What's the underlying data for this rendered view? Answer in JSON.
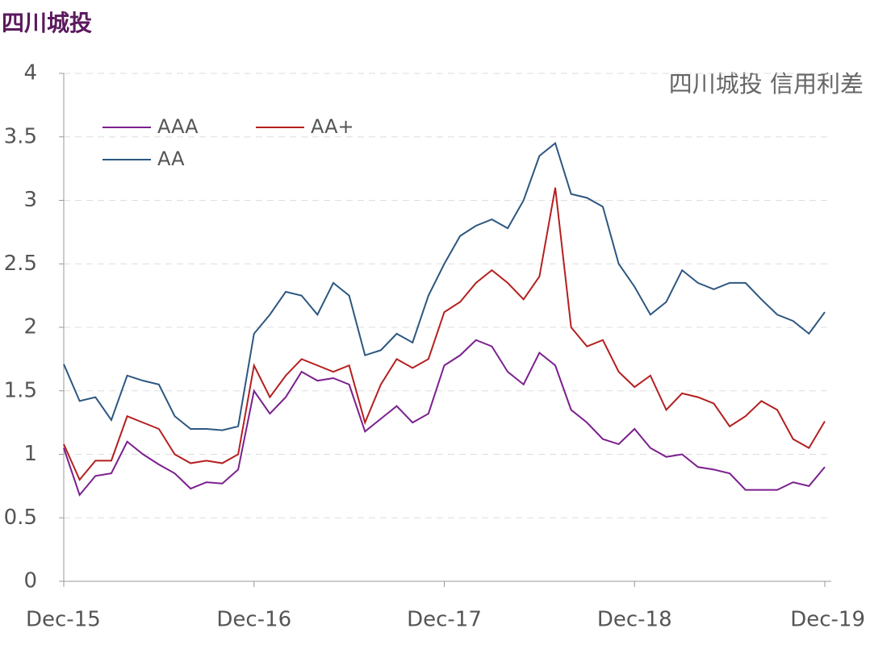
{
  "chart_data": {
    "type": "line",
    "title": "四川城投",
    "annotation": "四川城投 信用利差",
    "x": [
      0,
      1,
      2,
      3,
      4,
      5,
      6,
      7,
      8,
      9,
      10,
      11,
      12,
      13,
      14,
      15,
      16,
      17,
      18,
      19,
      20,
      21,
      22,
      23,
      24,
      25,
      26,
      27,
      28,
      29,
      30,
      31,
      32,
      33,
      34,
      35,
      36,
      37,
      38,
      39,
      40,
      41,
      42,
      43,
      44,
      45,
      46,
      47,
      48
    ],
    "xlim": [
      0,
      48
    ],
    "xticks": [
      {
        "value": 0,
        "label": "Dec-15"
      },
      {
        "value": 12,
        "label": "Dec-16"
      },
      {
        "value": 24,
        "label": "Dec-17"
      },
      {
        "value": 36,
        "label": "Dec-18"
      },
      {
        "value": 48,
        "label": "Dec-19"
      }
    ],
    "ylim": [
      0,
      4
    ],
    "yticks": [
      0,
      0.5,
      1,
      1.5,
      2,
      2.5,
      3,
      3.5,
      4
    ],
    "grid": true,
    "legend": "upper left",
    "series": [
      {
        "name": "AAA",
        "color": "#7b1f8e",
        "values": [
          1.05,
          0.68,
          0.83,
          0.85,
          1.1,
          1.0,
          0.92,
          0.85,
          0.73,
          0.78,
          0.77,
          0.88,
          1.5,
          1.32,
          1.45,
          1.65,
          1.58,
          1.6,
          1.55,
          1.18,
          1.28,
          1.38,
          1.25,
          1.32,
          1.7,
          1.78,
          1.9,
          1.85,
          1.65,
          1.55,
          1.8,
          1.7,
          1.35,
          1.25,
          1.12,
          1.08,
          1.2,
          1.05,
          0.98,
          1.0,
          0.9,
          0.88,
          0.85,
          0.72,
          0.72,
          0.72,
          0.78,
          0.75,
          0.9
        ]
      },
      {
        "name": "AA+",
        "color": "#b51f1f",
        "values": [
          1.08,
          0.8,
          0.95,
          0.95,
          1.3,
          1.25,
          1.2,
          1.0,
          0.93,
          0.95,
          0.93,
          1.0,
          1.7,
          1.45,
          1.62,
          1.75,
          1.7,
          1.65,
          1.7,
          1.25,
          1.55,
          1.75,
          1.68,
          1.75,
          2.12,
          2.2,
          2.35,
          2.45,
          2.35,
          2.22,
          2.4,
          3.1,
          2.0,
          1.85,
          1.9,
          1.65,
          1.53,
          1.62,
          1.35,
          1.48,
          1.45,
          1.4,
          1.22,
          1.3,
          1.42,
          1.35,
          1.12,
          1.05,
          1.26
        ]
      },
      {
        "name": "AA",
        "color": "#2d5780",
        "values": [
          1.71,
          1.42,
          1.45,
          1.27,
          1.62,
          1.58,
          1.55,
          1.3,
          1.2,
          1.2,
          1.19,
          1.22,
          1.95,
          2.1,
          2.28,
          2.25,
          2.1,
          2.35,
          2.25,
          1.78,
          1.82,
          1.95,
          1.88,
          2.25,
          2.5,
          2.72,
          2.8,
          2.85,
          2.78,
          3.0,
          3.35,
          3.45,
          3.05,
          3.02,
          2.95,
          2.5,
          2.32,
          2.1,
          2.2,
          2.45,
          2.35,
          2.3,
          2.35,
          2.35,
          2.22,
          2.1,
          2.05,
          1.95,
          2.12
        ]
      }
    ]
  }
}
